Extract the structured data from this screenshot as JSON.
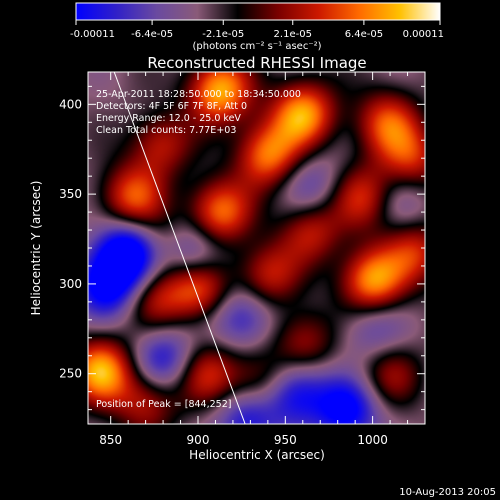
{
  "colorbar": {
    "tick_labels": [
      "-0.00011",
      "-6.4e-05",
      "-2.1e-05",
      "2.1e-05",
      "6.4e-05",
      "0.00011"
    ],
    "tick_values": [
      -0.00011,
      -6.4e-05,
      -2.1e-05,
      2.1e-05,
      6.4e-05,
      0.00011
    ],
    "units": "(photons cm⁻² s⁻¹ asec⁻²)",
    "range": [
      -0.00011,
      0.00011
    ],
    "stops": [
      "#0000ff",
      "#3020c8",
      "#6a4aa0",
      "#8a5a78",
      "#000000",
      "#7a0000",
      "#cc1800",
      "#ff6a00",
      "#ffc000",
      "#ffffff"
    ]
  },
  "chart_data": {
    "type": "heatmap",
    "title": "Reconstructed RHESSI Image",
    "xlabel": "Heliocentric X (arcsec)",
    "ylabel": "Heliocentric Y (arcsec)",
    "xlim": [
      837,
      1030
    ],
    "ylim": [
      222,
      418
    ],
    "x_ticks": [
      850,
      900,
      950,
      1000
    ],
    "y_ticks": [
      250,
      300,
      350,
      400
    ],
    "x_tick_labels": [
      "850",
      "900",
      "950",
      "1000"
    ],
    "y_tick_labels": [
      "250",
      "300",
      "350",
      "400"
    ],
    "annotations": [
      "25-Apr-2011 18:28:50.000 to 18:34:50.000",
      "Detectors: 4F 5F 6F 7F 8F, Att 0",
      "Energy Range: 12.0 - 25.0 keV",
      "Clean    Total counts: 7.77E+03"
    ],
    "peak_label": "Position of Peak = [844,252]",
    "peak": [
      844,
      252
    ],
    "limb_line": [
      [
        852,
        418
      ],
      [
        927,
        222
      ]
    ],
    "blobs": [
      {
        "x": 912,
        "y": 408,
        "v": 1.0
      },
      {
        "x": 960,
        "y": 395,
        "v": 0.95
      },
      {
        "x": 1008,
        "y": 390,
        "v": 0.7
      },
      {
        "x": 878,
        "y": 378,
        "v": 0.55
      },
      {
        "x": 940,
        "y": 372,
        "v": 0.85
      },
      {
        "x": 1022,
        "y": 370,
        "v": 0.6
      },
      {
        "x": 862,
        "y": 348,
        "v": 0.75
      },
      {
        "x": 912,
        "y": 340,
        "v": 0.85
      },
      {
        "x": 995,
        "y": 348,
        "v": 0.65
      },
      {
        "x": 965,
        "y": 330,
        "v": 0.55
      },
      {
        "x": 880,
        "y": 322,
        "v": 0.45
      },
      {
        "x": 900,
        "y": 298,
        "v": 0.8
      },
      {
        "x": 940,
        "y": 305,
        "v": 0.6
      },
      {
        "x": 1000,
        "y": 302,
        "v": 0.95
      },
      {
        "x": 1025,
        "y": 318,
        "v": 0.6
      },
      {
        "x": 875,
        "y": 292,
        "v": 0.5
      },
      {
        "x": 960,
        "y": 268,
        "v": 0.5
      },
      {
        "x": 844,
        "y": 252,
        "v": 1.0
      },
      {
        "x": 905,
        "y": 250,
        "v": 0.6
      },
      {
        "x": 935,
        "y": 245,
        "v": 0.5
      },
      {
        "x": 1010,
        "y": 250,
        "v": 0.45
      },
      {
        "x": 870,
        "y": 235,
        "v": 0.55
      },
      {
        "x": 860,
        "y": 318,
        "v": -1.0
      },
      {
        "x": 895,
        "y": 318,
        "v": -0.7
      },
      {
        "x": 848,
        "y": 300,
        "v": -0.8
      },
      {
        "x": 880,
        "y": 258,
        "v": -0.6
      },
      {
        "x": 925,
        "y": 282,
        "v": -0.55
      },
      {
        "x": 955,
        "y": 240,
        "v": -0.7
      },
      {
        "x": 985,
        "y": 230,
        "v": -0.75
      },
      {
        "x": 965,
        "y": 355,
        "v": -0.35
      },
      {
        "x": 1000,
        "y": 275,
        "v": -0.35
      },
      {
        "x": 1015,
        "y": 345,
        "v": -0.3
      },
      {
        "x": 928,
        "y": 225,
        "v": -0.6
      }
    ]
  },
  "footer": {
    "timestamp": "10-Aug-2013 20:05"
  }
}
